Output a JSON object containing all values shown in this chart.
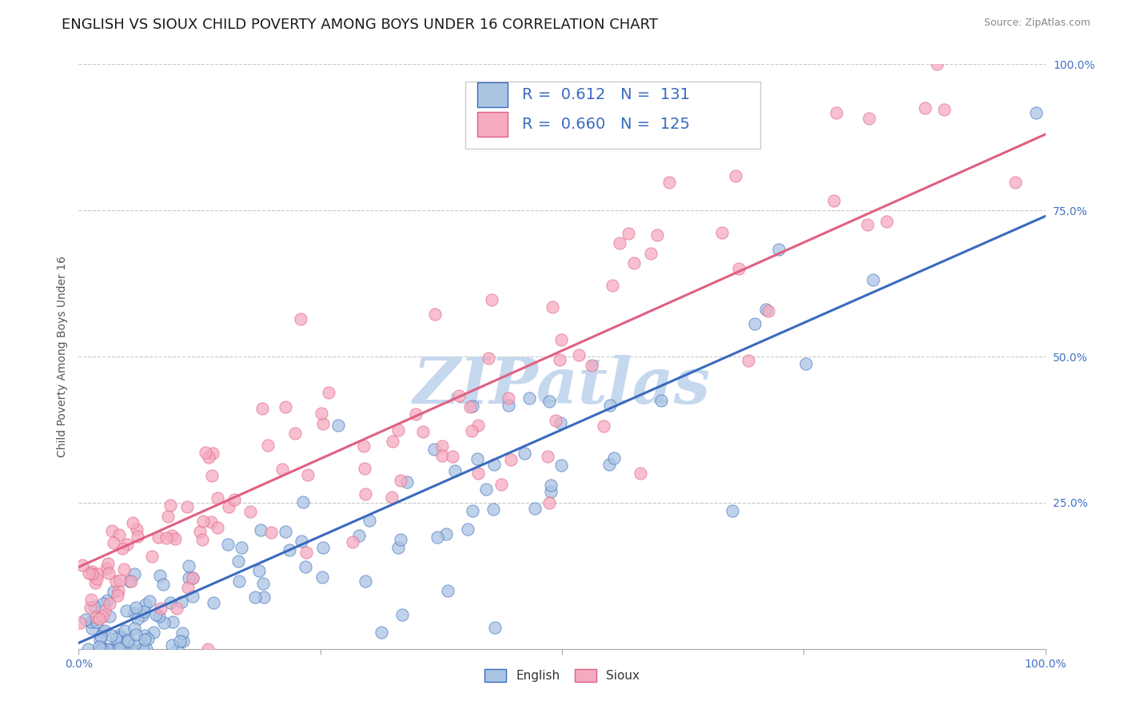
{
  "title": "ENGLISH VS SIOUX CHILD POVERTY AMONG BOYS UNDER 16 CORRELATION CHART",
  "source": "Source: ZipAtlas.com",
  "ylabel": "Child Poverty Among Boys Under 16",
  "english_R": 0.612,
  "english_N": 131,
  "sioux_R": 0.66,
  "sioux_N": 125,
  "english_color": "#aac4e2",
  "sioux_color": "#f5aac0",
  "english_line_color": "#3a6abf",
  "sioux_line_color": "#e06080",
  "watermark_text": "ZIPatlas",
  "watermark_color": "#c5d8ee",
  "background_color": "#ffffff",
  "xlim": [
    0.0,
    1.0
  ],
  "ylim": [
    0.0,
    1.0
  ],
  "x_ticks": [
    0.0,
    0.25,
    0.5,
    0.75,
    1.0
  ],
  "y_ticks": [
    0.0,
    0.25,
    0.5,
    0.75,
    1.0
  ],
  "x_tick_labels": [
    "0.0%",
    "",
    "",
    "",
    "100.0%"
  ],
  "y_tick_labels": [
    "",
    "25.0%",
    "50.0%",
    "75.0%",
    "100.0%"
  ],
  "tick_color": "#4472c4",
  "title_fontsize": 13,
  "axis_label_fontsize": 10,
  "tick_fontsize": 10,
  "legend_fontsize": 14,
  "english_seed": 42,
  "sioux_seed": 123,
  "eng_line_start_y": 0.01,
  "eng_line_end_y": 0.74,
  "sio_line_start_y": 0.14,
  "sio_line_end_y": 0.88
}
